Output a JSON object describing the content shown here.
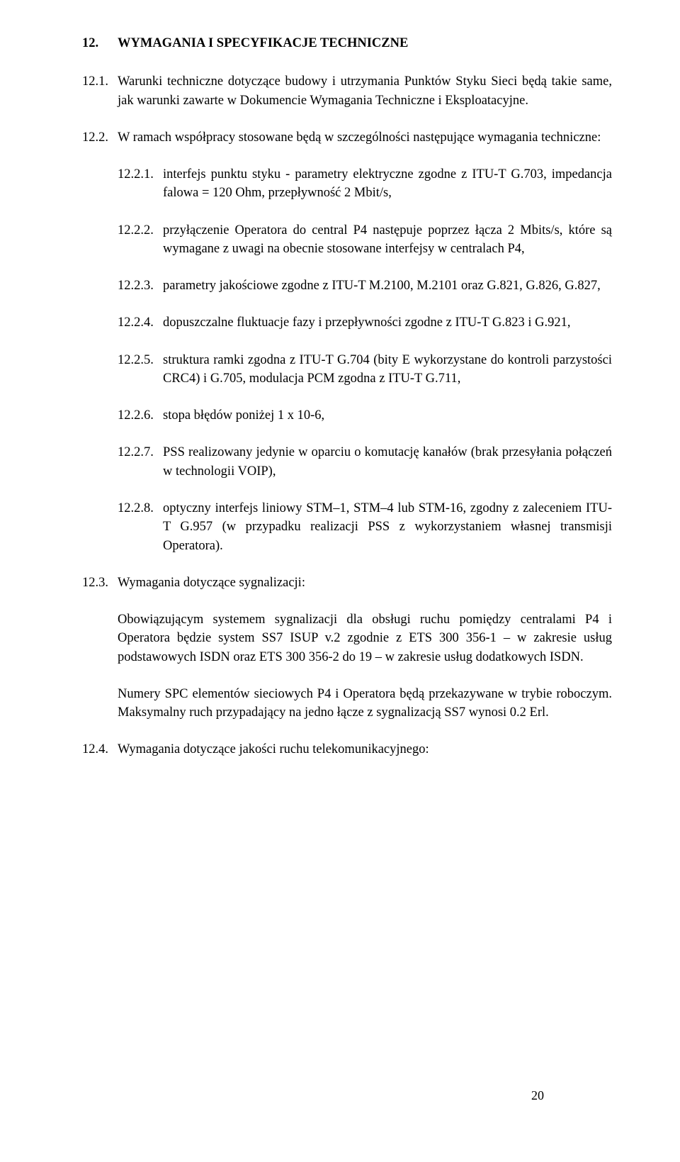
{
  "heading": {
    "num": "12.",
    "title": "WYMAGANIA I SPECYFIKACJE TECHNICZNE"
  },
  "items": [
    {
      "level": 2,
      "num": "12.1.",
      "text": "Warunki techniczne dotyczące budowy i utrzymania Punktów Styku Sieci będą takie same, jak warunki zawarte w Dokumencie Wymagania Techniczne i Eksploatacyjne."
    },
    {
      "level": 2,
      "num": "12.2.",
      "text": "W ramach współpracy stosowane będą w szczególności następujące wymagania techniczne:"
    },
    {
      "level": 3,
      "num": "12.2.1.",
      "text": "interfejs punktu styku - parametry elektryczne zgodne z ITU-T G.703, impedancja falowa = 120 Ohm, przepływność 2 Mbit/s,"
    },
    {
      "level": 3,
      "num": "12.2.2.",
      "text": "przyłączenie Operatora do central P4 następuje poprzez łącza 2 Mbits/s, które są wymagane z uwagi na obecnie stosowane interfejsy w centralach P4,"
    },
    {
      "level": 3,
      "num": "12.2.3.",
      "text": "parametry jakościowe zgodne z ITU-T M.2100, M.2101 oraz G.821, G.826, G.827,"
    },
    {
      "level": 3,
      "num": "12.2.4.",
      "text": "dopuszczalne fluktuacje fazy i przepływności zgodne z ITU-T G.823 i G.921,"
    },
    {
      "level": 3,
      "num": "12.2.5.",
      "text": "struktura ramki zgodna z ITU-T G.704 (bity E wykorzystane do kontroli parzystości CRC4) i G.705, modulacja PCM zgodna z ITU-T G.711,"
    },
    {
      "level": 3,
      "num": "12.2.6.",
      "text": "stopa błędów poniżej 1 x 10-6,"
    },
    {
      "level": 3,
      "num": "12.2.7.",
      "text": "PSS realizowany jedynie w oparciu o komutację kanałów (brak przesyłania połączeń w technologii VOIP),"
    },
    {
      "level": 3,
      "num": "12.2.8.",
      "text": "optyczny interfejs liniowy STM–1, STM–4 lub STM-16, zgodny z zaleceniem ITU-T G.957 (w przypadku realizacji PSS z wykorzystaniem własnej transmisji Operatora)."
    },
    {
      "level": 2,
      "num": "12.3.",
      "text": "Wymagania dotyczące sygnalizacji:"
    },
    {
      "level": "para",
      "text": "Obowiązującym systemem sygnalizacji dla obsługi ruchu pomiędzy centralami P4 i Operatora będzie system SS7 ISUP v.2 zgodnie z ETS 300 356-1 – w zakresie usług podstawowych ISDN oraz ETS 300 356-2 do 19 – w zakresie usług dodatkowych ISDN."
    },
    {
      "level": "para",
      "text": "Numery SPC elementów sieciowych P4 i Operatora będą przekazywane w trybie roboczym. Maksymalny ruch przypadający na jedno łącze z sygnalizacją SS7 wynosi 0.2 Erl."
    },
    {
      "level": 2,
      "num": "12.4.",
      "text": "Wymagania dotyczące jakości ruchu telekomunikacyjnego:"
    }
  ],
  "page_number": "20"
}
